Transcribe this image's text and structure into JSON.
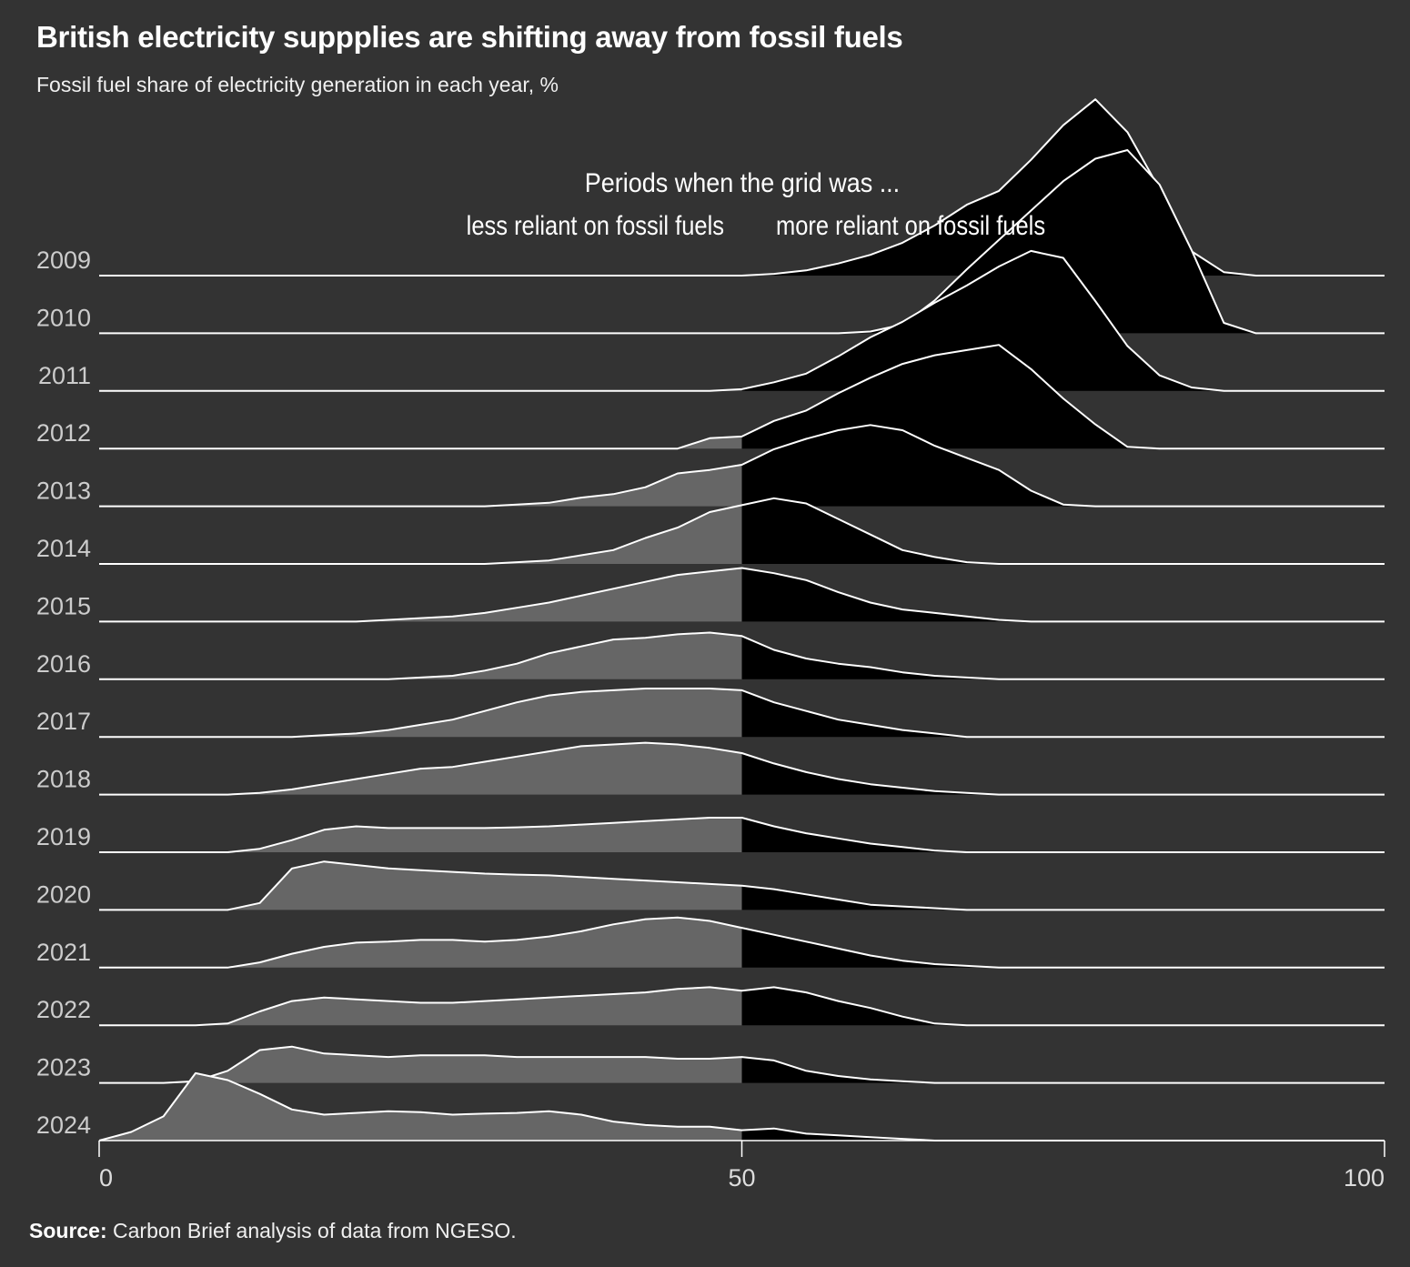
{
  "title": "British electricity suppplies are shifting away from fossil fuels",
  "subtitle": "Fossil fuel share of electricity generation in each year, %",
  "annotation": {
    "heading": "Periods when the grid was ...",
    "left_label": "less reliant on fossil fuels",
    "right_label": "more reliant on fossil fuels"
  },
  "source": {
    "label": "Source:",
    "text": "Carbon Brief analysis of data from NGESO."
  },
  "colors": {
    "background": "#333333",
    "low_fill": "#666666",
    "high_fill": "#000000",
    "line": "#ffffff",
    "year_label": "#cccccc",
    "tick_label": "#dddddd"
  },
  "chart_data": {
    "type": "area",
    "subtype": "ridgeline",
    "xlim": [
      0,
      100
    ],
    "x_ticks": [
      0,
      50,
      100
    ],
    "x_tick_labels": [
      "0",
      "50",
      "100"
    ],
    "threshold": 50,
    "x": [
      0,
      2.5,
      5,
      7.5,
      10,
      12.5,
      15,
      17.5,
      20,
      22.5,
      25,
      27.5,
      30,
      32.5,
      35,
      37.5,
      40,
      42.5,
      45,
      47.5,
      50,
      52.5,
      55,
      57.5,
      60,
      62.5,
      65,
      67.5,
      70,
      72.5,
      75,
      77.5,
      80,
      82.5,
      85,
      87.5,
      90,
      92.5,
      95,
      97.5,
      100
    ],
    "series": [
      {
        "name": "2009",
        "values": [
          0,
          0,
          0,
          0,
          0,
          0,
          0,
          0,
          0,
          0,
          0,
          0,
          0,
          0,
          0,
          0,
          0,
          0,
          0,
          0,
          0,
          0.05,
          0.15,
          0.35,
          0.6,
          0.95,
          1.45,
          2.05,
          2.45,
          3.35,
          4.35,
          5.1,
          4.15,
          2.5,
          0.7,
          0.1,
          0,
          0,
          0,
          0,
          0
        ]
      },
      {
        "name": "2010",
        "values": [
          0,
          0,
          0,
          0,
          0,
          0,
          0,
          0,
          0,
          0,
          0,
          0,
          0,
          0,
          0,
          0,
          0,
          0,
          0,
          0,
          0,
          0,
          0,
          0,
          0.05,
          0.25,
          0.95,
          1.85,
          2.7,
          3.55,
          4.4,
          5.05,
          5.3,
          4.3,
          2.4,
          0.3,
          0,
          0,
          0,
          0,
          0
        ]
      },
      {
        "name": "2011",
        "values": [
          0,
          0,
          0,
          0,
          0,
          0,
          0,
          0,
          0,
          0,
          0,
          0,
          0,
          0,
          0,
          0,
          0,
          0,
          0,
          0,
          0.05,
          0.25,
          0.5,
          1.0,
          1.55,
          2.0,
          2.55,
          3.05,
          3.6,
          4.05,
          3.85,
          2.6,
          1.3,
          0.45,
          0.1,
          0,
          0,
          0,
          0,
          0,
          0
        ]
      },
      {
        "name": "2012",
        "values": [
          0,
          0,
          0,
          0,
          0,
          0,
          0,
          0,
          0,
          0,
          0,
          0,
          0,
          0,
          0,
          0,
          0,
          0,
          0,
          0.3,
          0.35,
          0.8,
          1.1,
          1.6,
          2.05,
          2.45,
          2.7,
          2.85,
          3.0,
          2.3,
          1.45,
          0.7,
          0.05,
          0,
          0,
          0,
          0,
          0,
          0,
          0,
          0
        ]
      },
      {
        "name": "2013",
        "values": [
          0,
          0,
          0,
          0,
          0,
          0,
          0,
          0,
          0,
          0,
          0,
          0,
          0,
          0.05,
          0.1,
          0.25,
          0.35,
          0.55,
          0.95,
          1.05,
          1.2,
          1.65,
          1.95,
          2.2,
          2.35,
          2.2,
          1.75,
          1.4,
          1.05,
          0.45,
          0.05,
          0,
          0,
          0,
          0,
          0,
          0,
          0,
          0,
          0,
          0
        ]
      },
      {
        "name": "2014",
        "values": [
          0,
          0,
          0,
          0,
          0,
          0,
          0,
          0,
          0,
          0,
          0,
          0,
          0,
          0.05,
          0.1,
          0.25,
          0.4,
          0.75,
          1.05,
          1.5,
          1.7,
          1.9,
          1.75,
          1.3,
          0.85,
          0.4,
          0.2,
          0.05,
          0,
          0,
          0,
          0,
          0,
          0,
          0,
          0,
          0,
          0,
          0,
          0,
          0
        ]
      },
      {
        "name": "2015",
        "values": [
          0,
          0,
          0,
          0,
          0,
          0,
          0,
          0,
          0,
          0.05,
          0.1,
          0.15,
          0.25,
          0.4,
          0.55,
          0.75,
          0.95,
          1.15,
          1.35,
          1.45,
          1.55,
          1.4,
          1.2,
          0.85,
          0.55,
          0.35,
          0.25,
          0.15,
          0.05,
          0,
          0,
          0,
          0,
          0,
          0,
          0,
          0,
          0,
          0,
          0,
          0
        ]
      },
      {
        "name": "2016",
        "values": [
          0,
          0,
          0,
          0,
          0,
          0,
          0,
          0,
          0,
          0,
          0.05,
          0.1,
          0.25,
          0.45,
          0.75,
          0.95,
          1.15,
          1.2,
          1.3,
          1.35,
          1.25,
          0.85,
          0.6,
          0.45,
          0.35,
          0.2,
          0.1,
          0.05,
          0,
          0,
          0,
          0,
          0,
          0,
          0,
          0,
          0,
          0,
          0,
          0,
          0
        ]
      },
      {
        "name": "2017",
        "values": [
          0,
          0,
          0,
          0,
          0,
          0,
          0,
          0.05,
          0.1,
          0.2,
          0.35,
          0.5,
          0.75,
          1.0,
          1.2,
          1.3,
          1.35,
          1.4,
          1.4,
          1.4,
          1.35,
          1.0,
          0.75,
          0.5,
          0.35,
          0.2,
          0.1,
          0,
          0,
          0,
          0,
          0,
          0,
          0,
          0,
          0,
          0,
          0,
          0,
          0,
          0
        ]
      },
      {
        "name": "2018",
        "values": [
          0,
          0,
          0,
          0,
          0,
          0.05,
          0.15,
          0.3,
          0.45,
          0.6,
          0.75,
          0.8,
          0.95,
          1.1,
          1.25,
          1.4,
          1.45,
          1.5,
          1.45,
          1.35,
          1.2,
          0.9,
          0.65,
          0.45,
          0.3,
          0.2,
          0.1,
          0.05,
          0,
          0,
          0,
          0,
          0,
          0,
          0,
          0,
          0,
          0,
          0,
          0,
          0
        ]
      },
      {
        "name": "2019",
        "values": [
          0,
          0,
          0,
          0,
          0,
          0.1,
          0.35,
          0.65,
          0.75,
          0.7,
          0.7,
          0.7,
          0.7,
          0.72,
          0.75,
          0.8,
          0.85,
          0.9,
          0.95,
          1.0,
          1.0,
          0.75,
          0.55,
          0.4,
          0.25,
          0.15,
          0.05,
          0,
          0,
          0,
          0,
          0,
          0,
          0,
          0,
          0,
          0,
          0,
          0,
          0,
          0
        ]
      },
      {
        "name": "2020",
        "values": [
          0,
          0,
          0,
          0,
          0,
          0.2,
          1.2,
          1.4,
          1.3,
          1.2,
          1.15,
          1.1,
          1.05,
          1.02,
          1.0,
          0.95,
          0.9,
          0.85,
          0.8,
          0.75,
          0.7,
          0.6,
          0.45,
          0.3,
          0.15,
          0.1,
          0.05,
          0,
          0,
          0,
          0,
          0,
          0,
          0,
          0,
          0,
          0,
          0,
          0,
          0,
          0
        ]
      },
      {
        "name": "2021",
        "values": [
          0,
          0,
          0,
          0,
          0,
          0.15,
          0.4,
          0.6,
          0.72,
          0.75,
          0.8,
          0.8,
          0.75,
          0.8,
          0.9,
          1.05,
          1.25,
          1.4,
          1.45,
          1.35,
          1.15,
          0.95,
          0.75,
          0.55,
          0.35,
          0.2,
          0.1,
          0.05,
          0,
          0,
          0,
          0,
          0,
          0,
          0,
          0,
          0,
          0,
          0,
          0,
          0
        ]
      },
      {
        "name": "2022",
        "values": [
          0,
          0,
          0,
          0,
          0.05,
          0.4,
          0.7,
          0.8,
          0.75,
          0.7,
          0.65,
          0.65,
          0.7,
          0.75,
          0.8,
          0.85,
          0.9,
          0.95,
          1.05,
          1.1,
          1.0,
          1.1,
          0.95,
          0.7,
          0.5,
          0.25,
          0.05,
          0,
          0,
          0,
          0,
          0,
          0,
          0,
          0,
          0,
          0,
          0,
          0,
          0,
          0
        ]
      },
      {
        "name": "2023",
        "values": [
          0,
          0,
          0,
          0.05,
          0.35,
          0.95,
          1.05,
          0.85,
          0.8,
          0.75,
          0.8,
          0.8,
          0.8,
          0.75,
          0.75,
          0.75,
          0.75,
          0.75,
          0.7,
          0.7,
          0.75,
          0.65,
          0.35,
          0.2,
          0.1,
          0.05,
          0,
          0,
          0,
          0,
          0,
          0,
          0,
          0,
          0,
          0,
          0,
          0,
          0,
          0,
          0
        ]
      },
      {
        "name": "2024",
        "values": [
          0,
          0.25,
          0.7,
          1.95,
          1.75,
          1.35,
          0.9,
          0.75,
          0.8,
          0.85,
          0.82,
          0.75,
          0.78,
          0.8,
          0.85,
          0.75,
          0.55,
          0.45,
          0.4,
          0.4,
          0.3,
          0.35,
          0.2,
          0.15,
          0.1,
          0.05,
          0,
          0,
          0,
          0,
          0,
          0,
          0,
          0,
          0,
          0,
          0,
          0,
          0,
          0,
          0
        ]
      }
    ]
  }
}
